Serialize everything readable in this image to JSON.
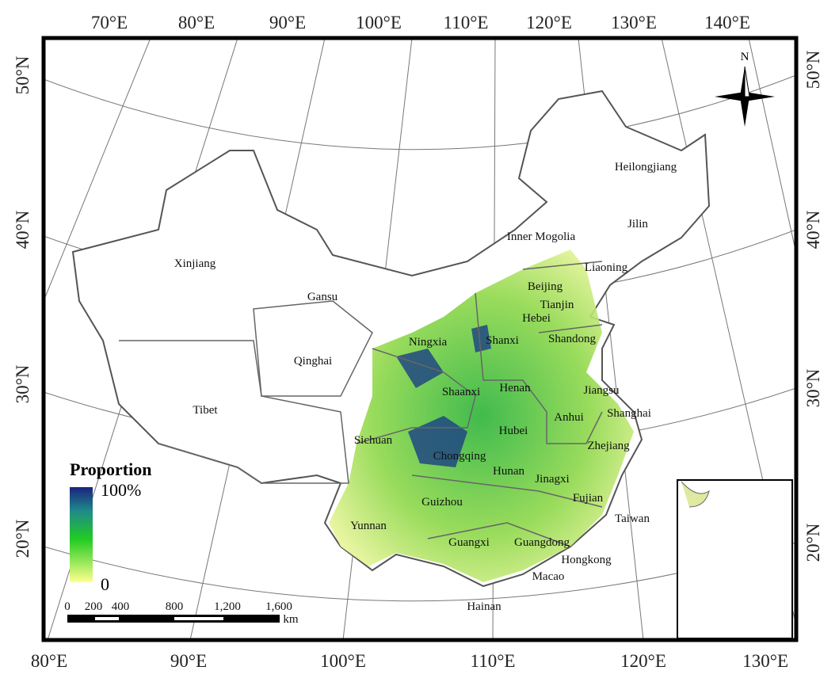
{
  "graticule": {
    "top": [
      "70°E",
      "80°E",
      "90°E",
      "100°E",
      "110°E",
      "120°E",
      "130°E",
      "140°E"
    ],
    "bottom": [
      "80°E",
      "90°E",
      "100°E",
      "110°E",
      "120°E",
      "130°E"
    ],
    "left": [
      "50°N",
      "40°N",
      "30°N",
      "20°N"
    ],
    "right": [
      "50°N",
      "40°N",
      "30°N",
      "20°N"
    ]
  },
  "compass": "N",
  "provinces": [
    "Heilongjiang",
    "Jilin",
    "Inner Mogolia",
    "Liaoning",
    "Xinjiang",
    "Gansu",
    "Beijing",
    "Tianjin",
    "Hebei",
    "Ningxia",
    "Shanxi",
    "Shandong",
    "Qinghai",
    "Henan",
    "Shaanxi",
    "Jiangsu",
    "Tibet",
    "Anhui",
    "Shanghai",
    "Hubei",
    "Sichuan",
    "Chongqing",
    "Zhejiang",
    "Hunan",
    "Jinagxi",
    "Fujian",
    "Guizhou",
    "Taiwan",
    "Yunnan",
    "Guangxi",
    "Guangdong",
    "Hongkong",
    "Macao",
    "Hainan"
  ],
  "legend": {
    "title": "Proportion",
    "max": "100%",
    "min": "0"
  },
  "scale_bar": {
    "labels": [
      "0",
      "200",
      "400",
      "800",
      "1,200",
      "1,600"
    ],
    "unit": "km"
  }
}
